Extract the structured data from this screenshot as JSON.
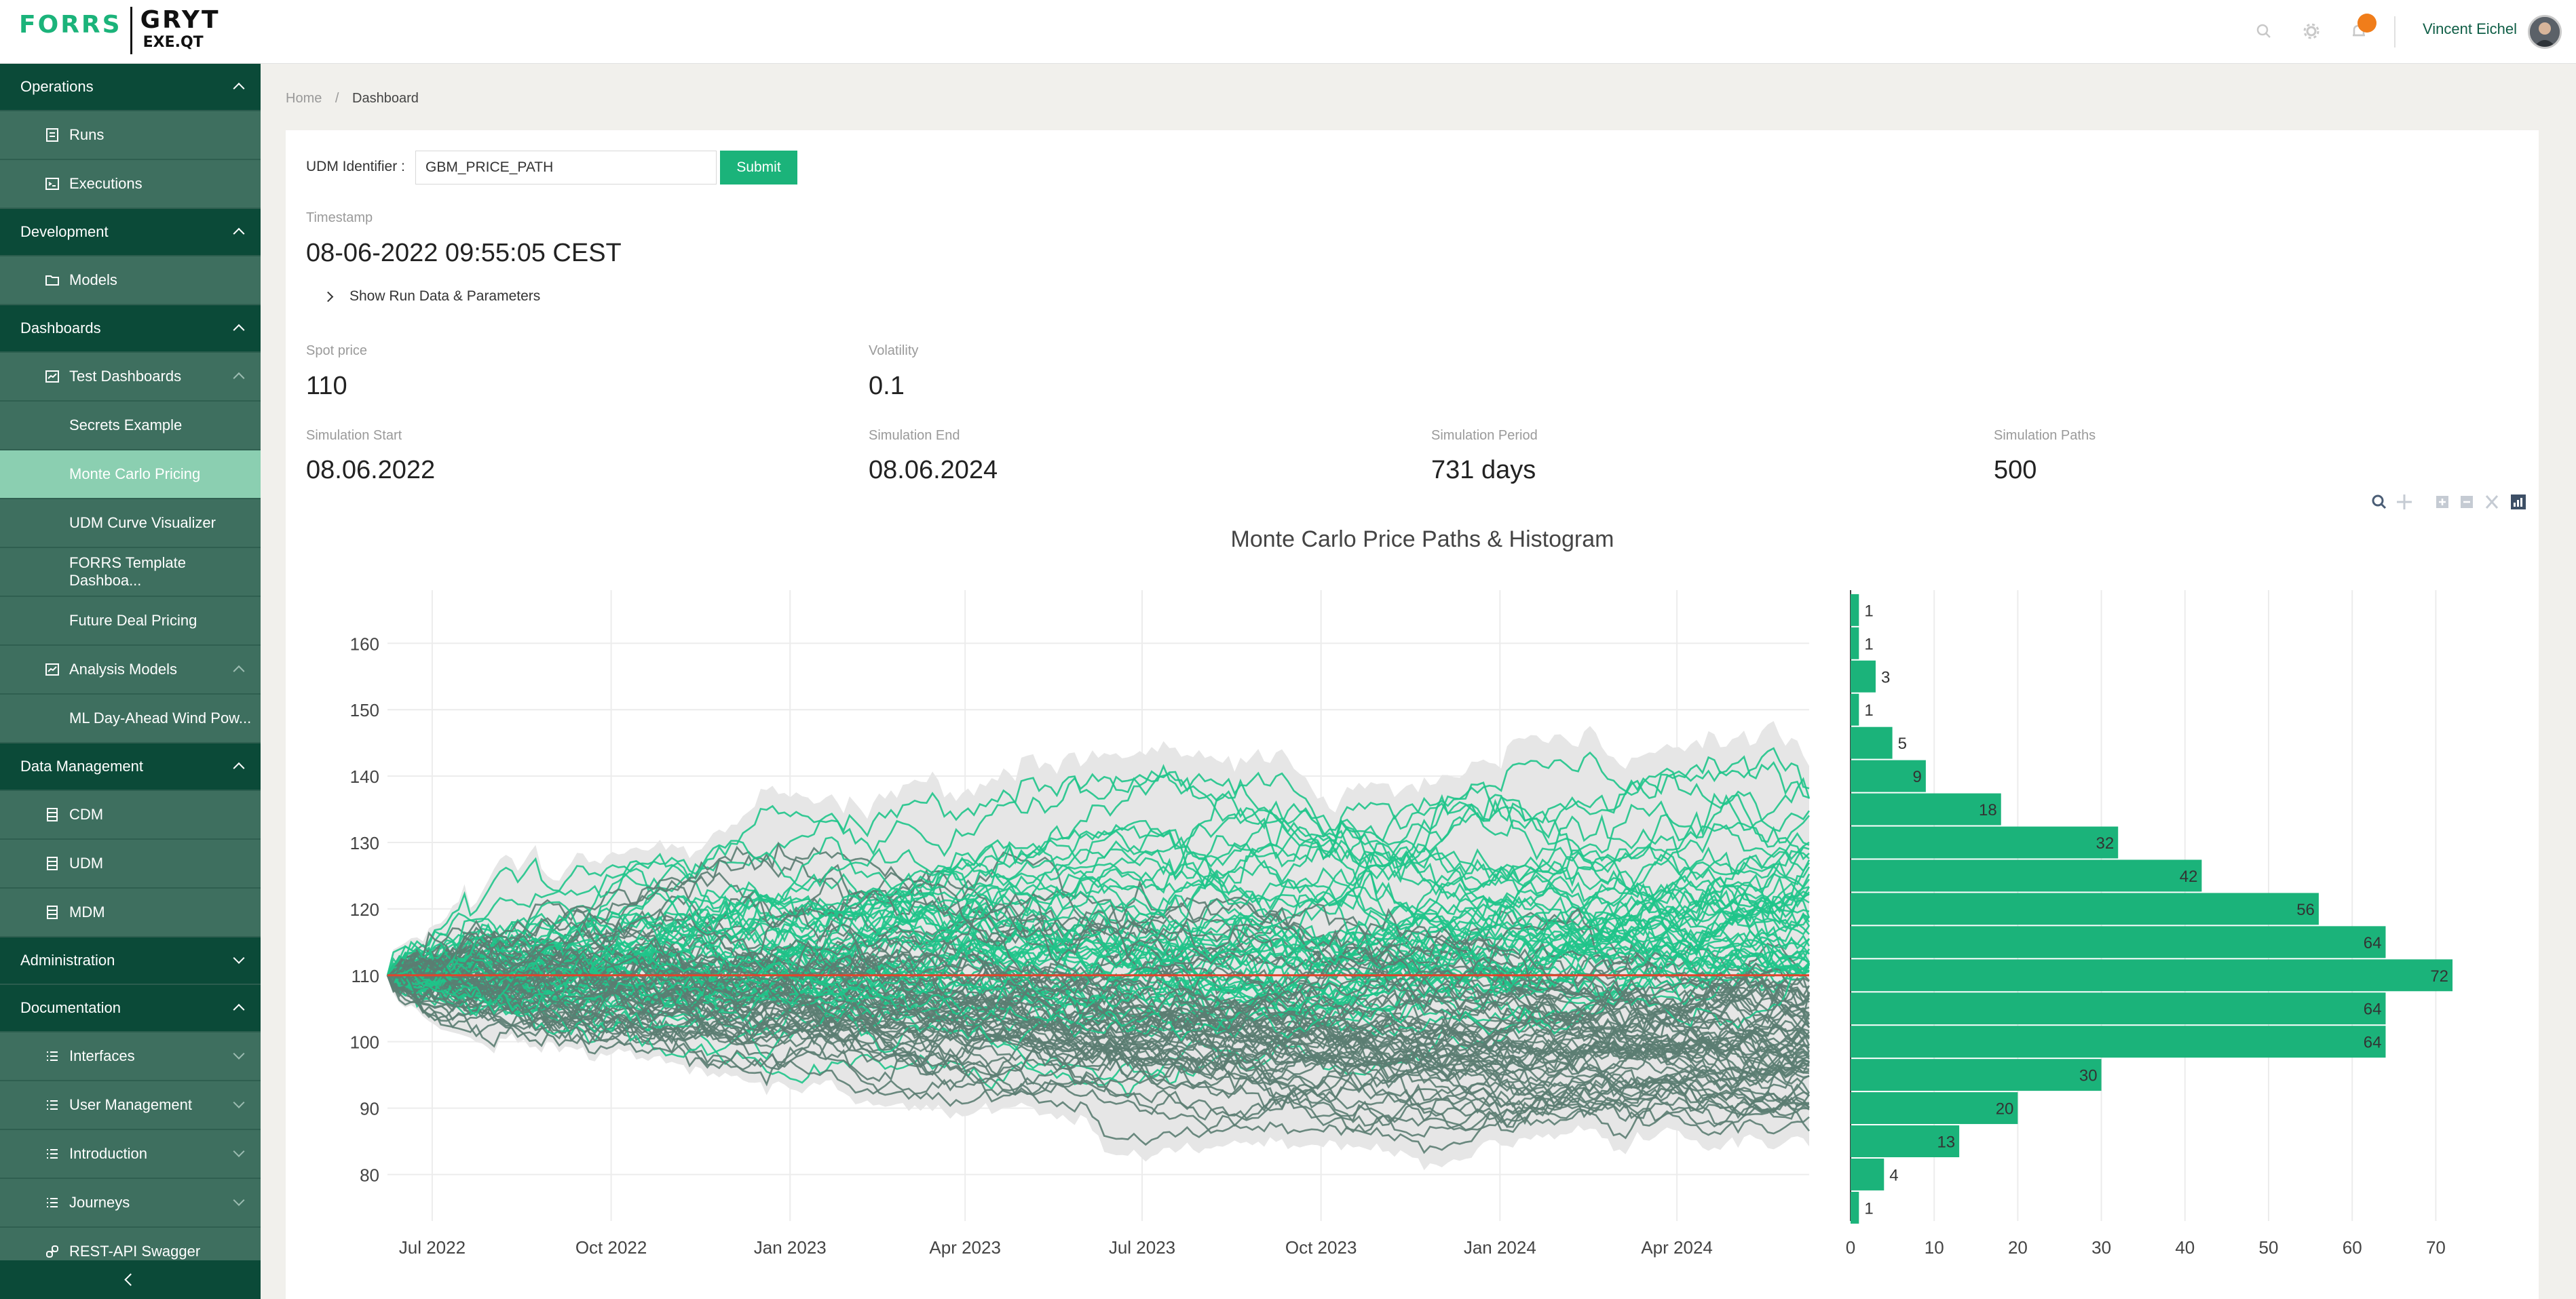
{
  "header": {
    "logo_left": "FORRS",
    "logo_right_top": "GRYT",
    "logo_right_bottom": "EXE.QT",
    "user_name": "Vincent Eichel",
    "icons": [
      "search-icon",
      "gear-icon",
      "bell-icon"
    ],
    "notification_color": "#f07d1a"
  },
  "sidebar": {
    "items": [
      {
        "type": "group",
        "label": "Operations",
        "expanded": true
      },
      {
        "type": "item",
        "label": "Runs",
        "icon": "document-icon"
      },
      {
        "type": "item",
        "label": "Executions",
        "icon": "terminal-icon"
      },
      {
        "type": "group",
        "label": "Development",
        "expanded": true
      },
      {
        "type": "item",
        "label": "Models",
        "icon": "folder-icon"
      },
      {
        "type": "group",
        "label": "Dashboards",
        "expanded": true
      },
      {
        "type": "item",
        "label": "Test Dashboards",
        "icon": "chart-icon",
        "expanded": true
      },
      {
        "type": "sub",
        "label": "Secrets Example"
      },
      {
        "type": "sub",
        "label": "Monte Carlo Pricing",
        "active": true
      },
      {
        "type": "sub",
        "label": "UDM Curve Visualizer"
      },
      {
        "type": "sub",
        "label": "FORRS Template Dashboa..."
      },
      {
        "type": "sub",
        "label": "Future Deal Pricing"
      },
      {
        "type": "item",
        "label": "Analysis Models",
        "icon": "chart-icon",
        "expanded": true
      },
      {
        "type": "sub",
        "label": "ML Day-Ahead Wind Pow..."
      },
      {
        "type": "group",
        "label": "Data Management",
        "expanded": true
      },
      {
        "type": "item",
        "label": "CDM",
        "icon": "database-icon"
      },
      {
        "type": "item",
        "label": "UDM",
        "icon": "database-icon"
      },
      {
        "type": "item",
        "label": "MDM",
        "icon": "database-icon"
      },
      {
        "type": "group",
        "label": "Administration",
        "expanded": false
      },
      {
        "type": "group",
        "label": "Documentation",
        "expanded": true
      },
      {
        "type": "item",
        "label": "Interfaces",
        "icon": "list-icon",
        "collapsible": true
      },
      {
        "type": "item",
        "label": "User Management",
        "icon": "list-icon",
        "collapsible": true
      },
      {
        "type": "item",
        "label": "Introduction",
        "icon": "list-icon",
        "collapsible": true
      },
      {
        "type": "item",
        "label": "Journeys",
        "icon": "list-icon",
        "collapsible": true
      },
      {
        "type": "item",
        "label": "REST-API Swagger",
        "icon": "link-icon"
      }
    ],
    "colors": {
      "group_bg": "#0b4a38",
      "item_bg": "#3e6f5f",
      "active_bg": "#8bcfb1"
    }
  },
  "breadcrumb": {
    "home": "Home",
    "separator": "/",
    "current": "Dashboard"
  },
  "form": {
    "udm_label": "UDM Identifier :",
    "udm_value": "GBM_PRICE_PATH",
    "submit_label": "Submit"
  },
  "run": {
    "timestamp_label": "Timestamp",
    "timestamp_value": "08-06-2022 09:55:05 CEST",
    "show_run_label": "Show Run Data & Parameters"
  },
  "metrics": {
    "spot_price": {
      "label": "Spot price",
      "value": "110"
    },
    "volatility": {
      "label": "Volatility",
      "value": "0.1"
    },
    "sim_start": {
      "label": "Simulation Start",
      "value": "08.06.2022"
    },
    "sim_end": {
      "label": "Simulation End",
      "value": "08.06.2024"
    },
    "sim_period": {
      "label": "Simulation Period",
      "value": "731 days"
    },
    "sim_paths": {
      "label": "Simulation Paths",
      "value": "500"
    }
  },
  "modebar_icons": [
    "zoom-icon",
    "pan-icon",
    "zoom-in-icon",
    "zoom-out-icon",
    "autoscale-icon",
    "plotly-logo-icon"
  ],
  "chart_data": [
    {
      "type": "line",
      "title": "Monte Carlo Price Paths & Histogram",
      "x_start": "2022-06-08",
      "x_end": "2024-06-08",
      "x_tick_labels": [
        "Jul 2022",
        "Oct 2022",
        "Jan 2023",
        "Apr 2023",
        "Jul 2023",
        "Oct 2023",
        "Jan 2024",
        "Apr 2024"
      ],
      "y_tick_labels": [
        "80",
        "90",
        "100",
        "110",
        "120",
        "130",
        "140",
        "150",
        "160"
      ],
      "ylim": [
        73,
        168
      ],
      "series": [
        {
          "role": "simulated paths",
          "count": 500,
          "start_value": 110,
          "color_above": "#1fc48a",
          "color_below": "#5b7d72"
        },
        {
          "role": "spot price reference",
          "value": 110,
          "color": "#e0442b"
        },
        {
          "role": "path envelope",
          "color": "#e6e6e6"
        }
      ],
      "grid": true
    },
    {
      "type": "bar",
      "orientation": "horizontal",
      "bin_width": 5,
      "bins": [
        {
          "from": 72.5,
          "to": 77.5,
          "count": 1
        },
        {
          "from": 77.5,
          "to": 82.5,
          "count": 4
        },
        {
          "from": 82.5,
          "to": 87.5,
          "count": 13
        },
        {
          "from": 87.5,
          "to": 92.5,
          "count": 20
        },
        {
          "from": 92.5,
          "to": 97.5,
          "count": 30
        },
        {
          "from": 97.5,
          "to": 102.5,
          "count": 64
        },
        {
          "from": 102.5,
          "to": 107.5,
          "count": 64
        },
        {
          "from": 107.5,
          "to": 112.5,
          "count": 72
        },
        {
          "from": 112.5,
          "to": 117.5,
          "count": 64
        },
        {
          "from": 117.5,
          "to": 122.5,
          "count": 56
        },
        {
          "from": 122.5,
          "to": 127.5,
          "count": 42
        },
        {
          "from": 127.5,
          "to": 132.5,
          "count": 32
        },
        {
          "from": 132.5,
          "to": 137.5,
          "count": 18
        },
        {
          "from": 137.5,
          "to": 142.5,
          "count": 9
        },
        {
          "from": 142.5,
          "to": 147.5,
          "count": 5
        },
        {
          "from": 147.5,
          "to": 152.5,
          "count": 1
        },
        {
          "from": 152.5,
          "to": 157.5,
          "count": 3
        },
        {
          "from": 157.5,
          "to": 162.5,
          "count": 1
        },
        {
          "from": 162.5,
          "to": 167.5,
          "count": 1
        }
      ],
      "x_tick_labels": [
        "0",
        "10",
        "20",
        "30",
        "40",
        "50",
        "60",
        "70"
      ],
      "xlim": [
        0,
        75
      ],
      "bar_color": "#1bb37a",
      "data_labels": true
    }
  ]
}
